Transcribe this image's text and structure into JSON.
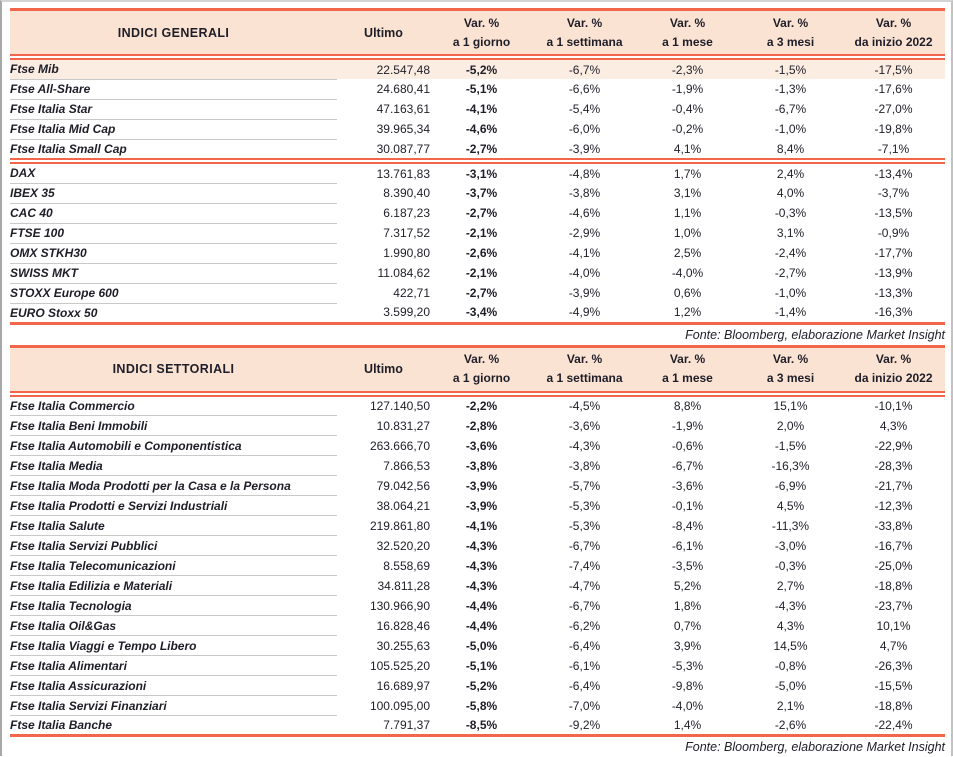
{
  "colors": {
    "accent_red": "#F2664C",
    "header_bg": "#FBE3D4",
    "highlight_bg": "#FCEDE3",
    "separator_gray": "#C9C9C9",
    "text": "#1E1E28"
  },
  "tables": [
    {
      "name": "indici-generali",
      "title": "INDICI GENERALI",
      "ultimo_header": "Ultimo",
      "var_headers": [
        {
          "line1": "Var. %",
          "line2": "a 1 giorno"
        },
        {
          "line1": "Var. %",
          "line2": "a 1 settimana"
        },
        {
          "line1": "Var. %",
          "line2": "a 1 mese"
        },
        {
          "line1": "Var. %",
          "line2": "a 3 mesi"
        },
        {
          "line1": "Var. %",
          "line2": "da inizio 2022"
        }
      ],
      "groups": [
        {
          "rows": [
            {
              "label": "Ftse Mib",
              "highlight": true,
              "ultimo": "22.547,48",
              "vars": [
                "-5,2%",
                "-6,7%",
                "-2,3%",
                "-1,5%",
                "-17,5%"
              ]
            },
            {
              "label": "Ftse All-Share",
              "ultimo": "24.680,41",
              "vars": [
                "-5,1%",
                "-6,6%",
                "-1,9%",
                "-1,3%",
                "-17,6%"
              ]
            },
            {
              "label": "Ftse Italia Star",
              "ultimo": "47.163,61",
              "vars": [
                "-4,1%",
                "-5,4%",
                "-0,4%",
                "-6,7%",
                "-27,0%"
              ]
            },
            {
              "label": "Ftse Italia Mid Cap",
              "ultimo": "39.965,34",
              "vars": [
                "-4,6%",
                "-6,0%",
                "-0,2%",
                "-1,0%",
                "-19,8%"
              ]
            },
            {
              "label": "Ftse Italia Small Cap",
              "ultimo": "30.087,77",
              "vars": [
                "-2,7%",
                "-3,9%",
                "4,1%",
                "8,4%",
                "-7,1%"
              ]
            }
          ]
        },
        {
          "rows": [
            {
              "label": "DAX",
              "ultimo": "13.761,83",
              "vars": [
                "-3,1%",
                "-4,8%",
                "1,7%",
                "2,4%",
                "-13,4%"
              ]
            },
            {
              "label": "IBEX 35",
              "ultimo": "8.390,40",
              "vars": [
                "-3,7%",
                "-3,8%",
                "3,1%",
                "4,0%",
                "-3,7%"
              ]
            },
            {
              "label": "CAC 40",
              "ultimo": "6.187,23",
              "vars": [
                "-2,7%",
                "-4,6%",
                "1,1%",
                "-0,3%",
                "-13,5%"
              ]
            },
            {
              "label": "FTSE 100",
              "ultimo": "7.317,52",
              "vars": [
                "-2,1%",
                "-2,9%",
                "1,0%",
                "3,1%",
                "-0,9%"
              ]
            },
            {
              "label": "OMX STKH30",
              "ultimo": "1.990,80",
              "vars": [
                "-2,6%",
                "-4,1%",
                "2,5%",
                "-2,4%",
                "-17,7%"
              ]
            },
            {
              "label": "SWISS MKT",
              "ultimo": "11.084,62",
              "vars": [
                "-2,1%",
                "-4,0%",
                "-4,0%",
                "-2,7%",
                "-13,9%"
              ]
            },
            {
              "label": "STOXX Europe 600",
              "ultimo": "422,71",
              "vars": [
                "-2,7%",
                "-3,9%",
                "0,6%",
                "-1,0%",
                "-13,3%"
              ]
            },
            {
              "label": "EURO Stoxx 50",
              "ultimo": "3.599,20",
              "vars": [
                "-3,4%",
                "-4,9%",
                "1,2%",
                "-1,4%",
                "-16,3%"
              ]
            }
          ]
        }
      ],
      "source": "Fonte: Bloomberg, elaborazione Market Insight"
    },
    {
      "name": "indici-settoriali",
      "title": "INDICI SETTORIALI",
      "ultimo_header": "Ultimo",
      "var_headers": [
        {
          "line1": "Var. %",
          "line2": "a 1 giorno"
        },
        {
          "line1": "Var. %",
          "line2": "a 1 settimana"
        },
        {
          "line1": "Var. %",
          "line2": "a 1 mese"
        },
        {
          "line1": "Var. %",
          "line2": "a 3 mesi"
        },
        {
          "line1": "Var. %",
          "line2": "da inizio 2022"
        }
      ],
      "groups": [
        {
          "rows": [
            {
              "label": "Ftse Italia Commercio",
              "ultimo": "127.140,50",
              "vars": [
                "-2,2%",
                "-4,5%",
                "8,8%",
                "15,1%",
                "-10,1%"
              ]
            },
            {
              "label": "Ftse Italia Beni Immobili",
              "ultimo": "10.831,27",
              "vars": [
                "-2,8%",
                "-3,6%",
                "-1,9%",
                "2,0%",
                "4,3%"
              ]
            },
            {
              "label": "Ftse Italia Automobili e Componentistica",
              "ultimo": "263.666,70",
              "vars": [
                "-3,6%",
                "-4,3%",
                "-0,6%",
                "-1,5%",
                "-22,9%"
              ]
            },
            {
              "label": "Ftse Italia Media",
              "ultimo": "7.866,53",
              "vars": [
                "-3,8%",
                "-3,8%",
                "-6,7%",
                "-16,3%",
                "-28,3%"
              ]
            },
            {
              "label": "Ftse Italia Moda Prodotti per la Casa e la Persona",
              "ultimo": "79.042,56",
              "vars": [
                "-3,9%",
                "-5,7%",
                "-3,6%",
                "-6,9%",
                "-21,7%"
              ]
            },
            {
              "label": "Ftse Italia Prodotti e Servizi Industriali",
              "ultimo": "38.064,21",
              "vars": [
                "-3,9%",
                "-5,3%",
                "-0,1%",
                "4,5%",
                "-12,3%"
              ]
            },
            {
              "label": "Ftse Italia Salute",
              "ultimo": "219.861,80",
              "vars": [
                "-4,1%",
                "-5,3%",
                "-8,4%",
                "-11,3%",
                "-33,8%"
              ]
            },
            {
              "label": "Ftse Italia Servizi Pubblici",
              "ultimo": "32.520,20",
              "vars": [
                "-4,3%",
                "-6,7%",
                "-6,1%",
                "-3,0%",
                "-16,7%"
              ]
            },
            {
              "label": "Ftse Italia Telecomunicazioni",
              "ultimo": "8.558,69",
              "vars": [
                "-4,3%",
                "-7,4%",
                "-3,5%",
                "-0,3%",
                "-25,0%"
              ]
            },
            {
              "label": "Ftse Italia Edilizia e Materiali",
              "ultimo": "34.811,28",
              "vars": [
                "-4,3%",
                "-4,7%",
                "5,2%",
                "2,7%",
                "-18,8%"
              ]
            },
            {
              "label": "Ftse Italia Tecnologia",
              "ultimo": "130.966,90",
              "vars": [
                "-4,4%",
                "-6,7%",
                "1,8%",
                "-4,3%",
                "-23,7%"
              ]
            },
            {
              "label": "Ftse Italia Oil&Gas",
              "ultimo": "16.828,46",
              "vars": [
                "-4,4%",
                "-6,2%",
                "0,7%",
                "4,3%",
                "10,1%"
              ]
            },
            {
              "label": "Ftse Italia Viaggi e Tempo Libero",
              "ultimo": "30.255,63",
              "vars": [
                "-5,0%",
                "-6,4%",
                "3,9%",
                "14,5%",
                "4,7%"
              ]
            },
            {
              "label": "Ftse Italia Alimentari",
              "ultimo": "105.525,20",
              "vars": [
                "-5,1%",
                "-6,1%",
                "-5,3%",
                "-0,8%",
                "-26,3%"
              ]
            },
            {
              "label": "Ftse Italia Assicurazioni",
              "ultimo": "16.689,97",
              "vars": [
                "-5,2%",
                "-6,4%",
                "-9,8%",
                "-5,0%",
                "-15,5%"
              ]
            },
            {
              "label": "Ftse Italia Servizi Finanziari",
              "ultimo": "100.095,00",
              "vars": [
                "-5,8%",
                "-7,0%",
                "-4,0%",
                "2,1%",
                "-18,8%"
              ]
            },
            {
              "label": "Ftse Italia Banche",
              "ultimo": "7.791,37",
              "vars": [
                "-8,5%",
                "-9,2%",
                "1,4%",
                "-2,6%",
                "-22,4%"
              ]
            }
          ]
        }
      ],
      "source": "Fonte: Bloomberg, elaborazione Market Insight"
    }
  ]
}
